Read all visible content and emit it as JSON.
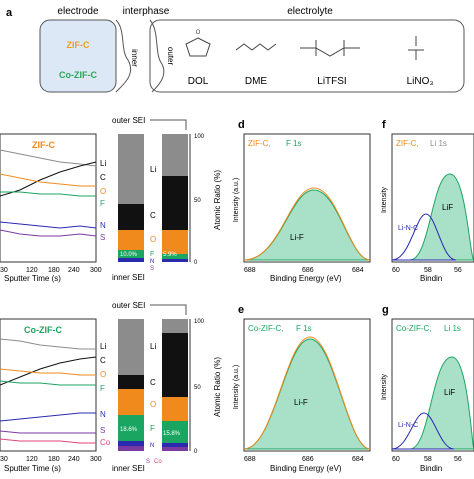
{
  "panel_a": {
    "letter": "a",
    "headers": {
      "electrode": "electrode",
      "interphase": "interphase",
      "electrolyte": "electrolyte"
    },
    "electrode_labels": [
      "ZIF-C",
      "Co-ZIF-C"
    ],
    "interphase_labels": {
      "inner": "inner",
      "outer": "outer"
    },
    "molecules": [
      "DOL",
      "DME",
      "LiTFSI",
      "LiNO₃"
    ],
    "colors": {
      "electrode_bg": "#dce8f5",
      "zif": "#f39a1d",
      "cozif": "#2aa65a"
    }
  },
  "row1": {
    "sample": "ZIF-C",
    "outer_sei": "outer SEI",
    "inner_sei": "inner SEI",
    "sputter_axis": {
      "label": "Sputter Time (s)",
      "ticks": [
        "30",
        "120",
        "180",
        "240",
        "300"
      ]
    },
    "element_labels": [
      "Li",
      "C",
      "O",
      "F",
      "N",
      "S"
    ],
    "bar_labels": [
      "Li",
      "C",
      "O",
      "F",
      "N",
      "S"
    ],
    "bar1_pct": "10.0%",
    "bar2_pct": "5.9%",
    "ratio_axis": {
      "label": "Atomic Ratio (%)",
      "ticks": [
        "0",
        "10",
        "20",
        "30",
        "40",
        "50",
        "60",
        "70",
        "80",
        "90",
        "100"
      ]
    }
  },
  "row2": {
    "sample": "Co-ZIF-C",
    "outer_sei": "outer SEI",
    "inner_sei": "inner SEI",
    "sputter_axis": {
      "label": "Sputter Time (s)",
      "ticks": [
        "30",
        "120",
        "180",
        "240",
        "300"
      ]
    },
    "element_labels": [
      "Li",
      "C",
      "O",
      "F",
      "N",
      "S",
      "Co"
    ],
    "bar_labels": [
      "Li",
      "C",
      "O",
      "F",
      "N",
      "S",
      "Co"
    ],
    "bar1_pct": "18.6%",
    "bar2_pct": "15.8%",
    "ratio_axis": {
      "label": "Atomic Ratio (%)",
      "ticks": [
        "0",
        "10",
        "20",
        "30",
        "40",
        "50",
        "60",
        "70",
        "80",
        "90",
        "100"
      ]
    }
  },
  "panel_d": {
    "letter": "d",
    "title_sample": "ZIF-C,",
    "title_core": "F 1s",
    "peak_label": "Li-F",
    "ylabel": "Intensity (a.u.)",
    "xlabel": "Binding Energy (eV)",
    "ticks": [
      "688",
      "686",
      "684"
    ]
  },
  "panel_e": {
    "letter": "e",
    "title_sample": "Co-ZIF-C,",
    "title_core": "F 1s",
    "peak_label": "Li-F",
    "ylabel": "Intensity (a.u.)",
    "xlabel": "Binding Energy (eV)",
    "ticks": [
      "688",
      "686",
      "684"
    ]
  },
  "panel_f": {
    "letter": "f",
    "title_sample": "ZIF-C,",
    "title_core": "Li 1s",
    "peak_labels": [
      "Li-N-C",
      "LiF"
    ],
    "ylabel": "Intensity",
    "xlabel": "Bindin",
    "ticks": [
      "60",
      "58",
      "56"
    ]
  },
  "panel_g": {
    "letter": "g",
    "title_sample": "Co-ZIF-C,",
    "title_core": "Li 1s",
    "peak_labels": [
      "Li-N-C",
      "LiF"
    ],
    "ylabel": "Intensity",
    "xlabel": "Bindin",
    "ticks": [
      "60",
      "58",
      "56"
    ]
  },
  "colors": {
    "orange": "#f08a1d",
    "green": "#1aa660",
    "teal_fill": "#a8e0c8",
    "gray": "#8c8c8c",
    "black": "#111111",
    "blue": "#2a2ab0",
    "purple": "#7a3aa0",
    "pink": "#e0457a"
  }
}
